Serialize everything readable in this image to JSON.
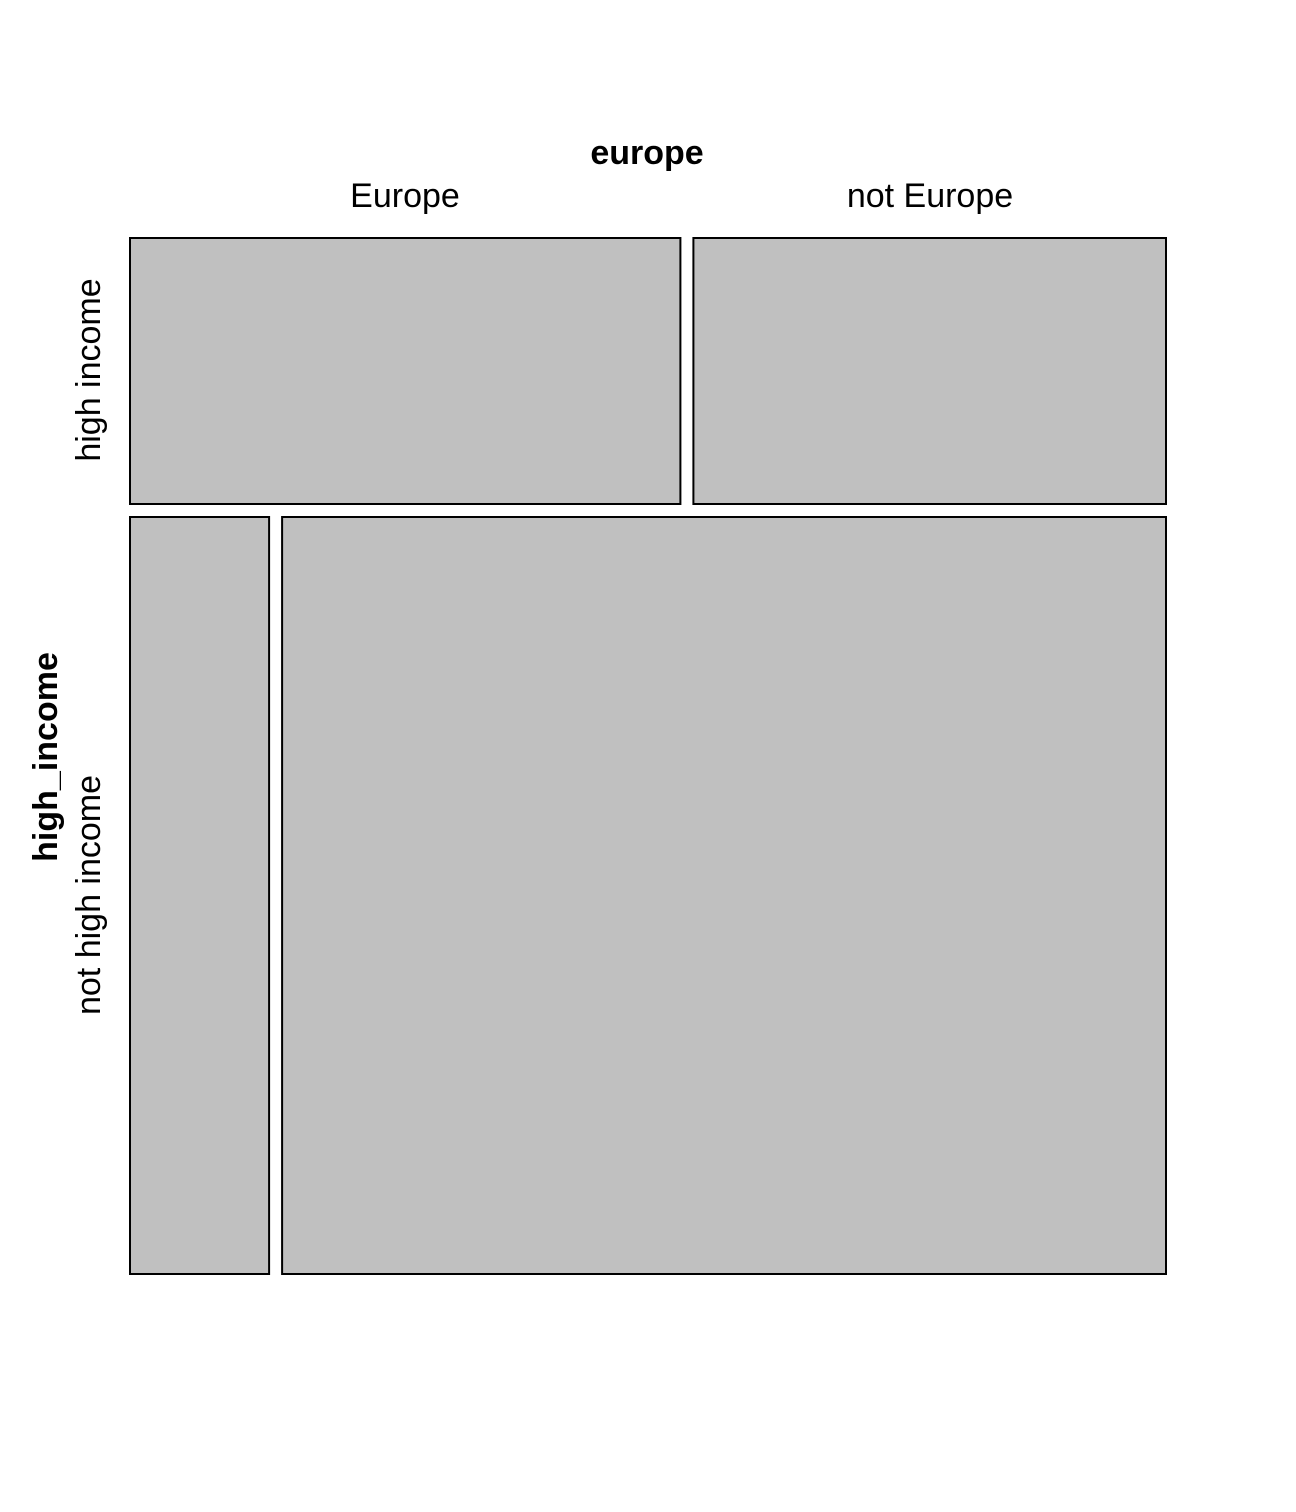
{
  "chart_data": {
    "type": "mosaic",
    "column_variable": "europe",
    "row_variable": "high_income",
    "column_levels": [
      "Europe",
      "not Europe"
    ],
    "row_levels": [
      "high income",
      "not high income"
    ],
    "row_proportions": [
      0.26,
      0.74
    ],
    "column_proportions_within_row": {
      "high income": [
        0.538,
        0.462
      ],
      "not high income": [
        0.136,
        0.864
      ]
    },
    "cells": [
      {
        "row": "high income",
        "column": "Europe",
        "share_of_row": 0.538
      },
      {
        "row": "high income",
        "column": "not Europe",
        "share_of_row": 0.462
      },
      {
        "row": "not high income",
        "column": "Europe",
        "share_of_row": 0.136
      },
      {
        "row": "not high income",
        "column": "not Europe",
        "share_of_row": 0.864
      }
    ],
    "fill_color": "#c0c0c0",
    "stroke_color": "#000000"
  }
}
